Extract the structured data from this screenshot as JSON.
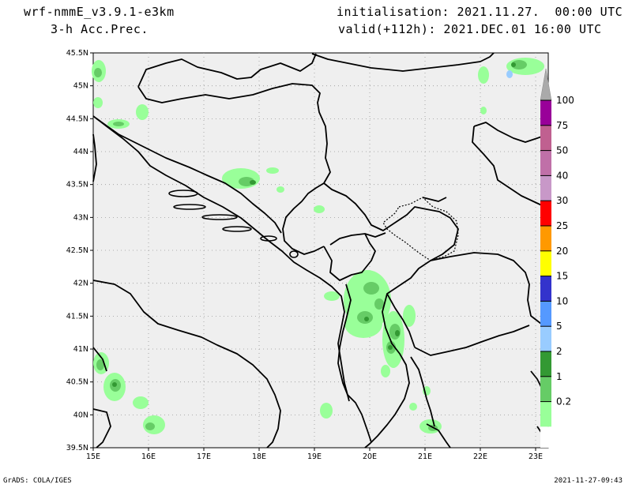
{
  "header": {
    "model": "wrf-nmmE_v3.9.1-e3km",
    "product": "3-h Acc.Prec.",
    "initialisation": "initialisation: 2021.11.27.  00:00 UTC",
    "valid": "valid(+112h): 2021.DEC.01 16:00 UTC"
  },
  "axes": {
    "lat_ticks": [
      "45.5N",
      "45N",
      "44.5N",
      "44N",
      "43.5N",
      "43N",
      "42.5N",
      "42N",
      "41.5N",
      "41N",
      "40.5N",
      "40N",
      "39.5N"
    ],
    "lon_ticks": [
      "15E",
      "16E",
      "17E",
      "18E",
      "19E",
      "20E",
      "21E",
      "22E",
      "23E"
    ]
  },
  "legend": {
    "labels": [
      "100",
      "75",
      "50",
      "40",
      "30",
      "25",
      "20",
      "15",
      "10",
      "5",
      "2",
      "1",
      "0.2"
    ],
    "colors": [
      "#990099",
      "#c06090",
      "#c070a8",
      "#c898c8",
      "#ff0000",
      "#ff9900",
      "#ffff00",
      "#3333cc",
      "#5599ff",
      "#99ccff",
      "#339933",
      "#66cc66",
      "#99ff99"
    ]
  },
  "map": {
    "ocean_color": "#efefef",
    "precip_light": "#99ff99",
    "precip_mid": "#66cc66",
    "precip_dark": "#339933"
  },
  "footer": {
    "left": "GrADS: COLA/IGES",
    "right": "2021-11-27-09:43"
  }
}
